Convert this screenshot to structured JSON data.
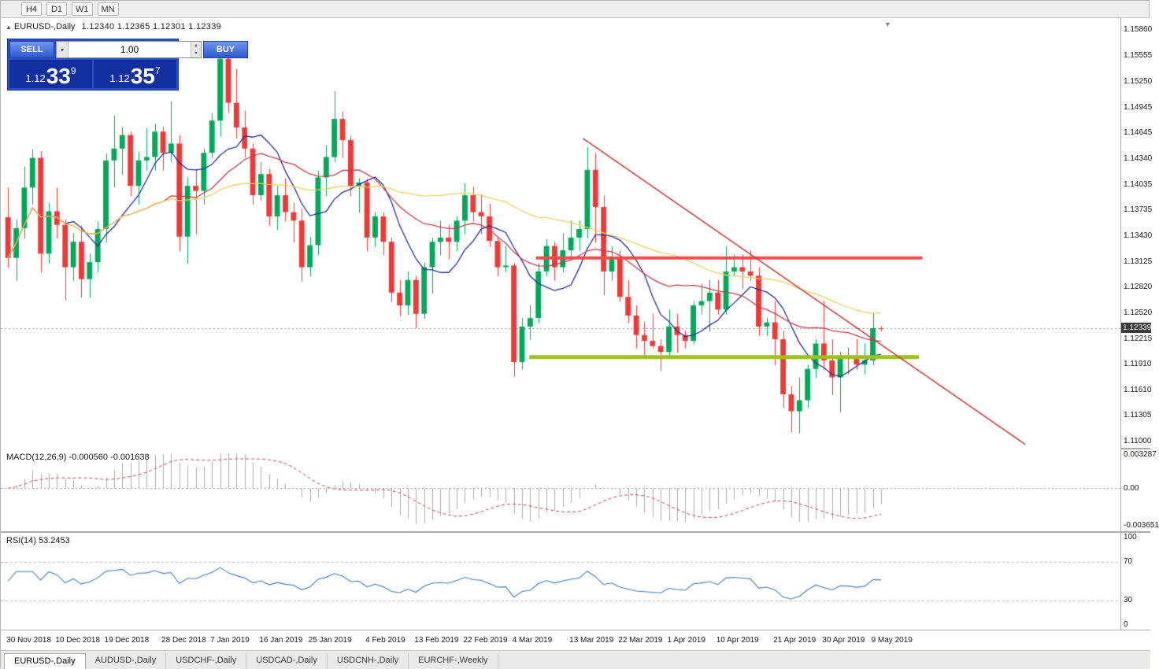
{
  "toolbar": {
    "timeframes": [
      "H4",
      "D1",
      "W1",
      "MN"
    ]
  },
  "chart": {
    "collapse_icon": "▲",
    "title": "EURUSD-,Daily",
    "ohlc_text": "1.12340 1.12365 1.12301 1.12339",
    "shift_icon": "▼"
  },
  "trade_panel": {
    "sell_label": "SELL",
    "buy_label": "BUY",
    "volume": "1.00",
    "spinner_up": "▴",
    "spinner_down": "▾",
    "sell_price": {
      "prefix": "1.12",
      "big": "33",
      "sup": "9"
    },
    "buy_price": {
      "prefix": "1.12",
      "big": "35",
      "sup": "7"
    }
  },
  "price_axis": {
    "ticks": [
      "1.15860",
      "1.15555",
      "1.15250",
      "1.14945",
      "1.14645",
      "1.14340",
      "1.14035",
      "1.13735",
      "1.13430",
      "1.13125",
      "1.12820",
      "1.12520",
      "1.12215",
      "1.11910",
      "1.11610",
      "1.11305",
      "1.11000"
    ],
    "current": "1.12339"
  },
  "macd": {
    "label": "MACD(12,26,9) -0.000560 -0.001638",
    "axis": [
      "0.003287",
      "0.00",
      "-0.003651"
    ]
  },
  "rsi": {
    "label": "RSI(14) 53.2453",
    "axis": [
      "100",
      "70",
      "30",
      "0"
    ],
    "levels": [
      70,
      30
    ]
  },
  "date_axis": [
    "30 Nov 2018",
    "10 Dec 2018",
    "19 Dec 2018",
    "28 Dec 2018",
    "7 Jan 2019",
    "16 Jan 2019",
    "25 Jan 2019",
    "4 Feb 2019",
    "13 Feb 2019",
    "22 Feb 2019",
    "4 Mar 2019",
    "13 Mar 2019",
    "22 Mar 2019",
    "1 Apr 2019",
    "10 Apr 2019",
    "21 Apr 2019",
    "30 Apr 2019",
    "9 May 2019"
  ],
  "tabs": {
    "active": 0,
    "items": [
      "EURUSD-,Daily",
      "AUDUSD-,Daily",
      "USDCHF-,Daily",
      "USDCAD-,Daily",
      "USDCNH-,Daily",
      "EURCHF-,Weekly"
    ]
  },
  "chart_data": {
    "type": "candlestick",
    "symbol": "EURUSD",
    "timeframe": "Daily",
    "price_range": {
      "top": 1.16,
      "bottom": 1.1091
    },
    "current_price": 1.12339,
    "plot_end_fraction": 0.787,
    "colors": {
      "bull": "#00a85c",
      "bear": "#f03838"
    },
    "moving_averages": [
      {
        "period": 8,
        "color": "#1c2f9e"
      },
      {
        "period": 20,
        "color": "#c83a4c"
      },
      {
        "period": 45,
        "color": "#ecd25c"
      }
    ],
    "overlays": {
      "resistance_line": {
        "price": 1.1317,
        "x1_frac": 0.478,
        "x2_frac": 0.823,
        "color": "#f14a4a",
        "width": 4
      },
      "support_line": {
        "price": 1.12,
        "x1_frac": 0.472,
        "x2_frac": 0.82,
        "color": "#9cc21a",
        "width": 5
      },
      "trendline": {
        "x1_frac": 0.52,
        "price1": 1.1458,
        "x2_frac": 0.915,
        "price2": 1.1097,
        "color": "#c43c3c",
        "width": 1.6
      }
    },
    "macd_settings": {
      "fast": 12,
      "slow": 26,
      "signal": 9,
      "bar_color": "#ababab",
      "signal_color": "#d04040"
    },
    "rsi_settings": {
      "period": 14,
      "line_color": "#3f7cbf"
    },
    "candles": [
      [
        1.1365,
        1.14,
        1.1305,
        1.1317
      ],
      [
        1.1317,
        1.1362,
        1.129,
        1.1352
      ],
      [
        1.1352,
        1.1425,
        1.134,
        1.14
      ],
      [
        1.14,
        1.1445,
        1.138,
        1.1435
      ],
      [
        1.1435,
        1.1443,
        1.13,
        1.1322
      ],
      [
        1.1322,
        1.1382,
        1.131,
        1.1372
      ],
      [
        1.1372,
        1.14,
        1.134,
        1.1356
      ],
      [
        1.1356,
        1.1362,
        1.1267,
        1.1306
      ],
      [
        1.1306,
        1.1346,
        1.129,
        1.1336
      ],
      [
        1.1336,
        1.1355,
        1.127,
        1.1292
      ],
      [
        1.1292,
        1.1322,
        1.127,
        1.1312
      ],
      [
        1.1312,
        1.136,
        1.13,
        1.1351
      ],
      [
        1.1351,
        1.144,
        1.1335,
        1.1432
      ],
      [
        1.1432,
        1.1485,
        1.14,
        1.1446
      ],
      [
        1.1446,
        1.1472,
        1.1415,
        1.1462
      ],
      [
        1.1462,
        1.1466,
        1.139,
        1.1402
      ],
      [
        1.1402,
        1.1442,
        1.138,
        1.1432
      ],
      [
        1.1432,
        1.147,
        1.142,
        1.1436
      ],
      [
        1.1436,
        1.1475,
        1.142,
        1.1466
      ],
      [
        1.1466,
        1.1472,
        1.142,
        1.1441
      ],
      [
        1.1441,
        1.1502,
        1.143,
        1.1452
      ],
      [
        1.1452,
        1.1462,
        1.1325,
        1.1342
      ],
      [
        1.1342,
        1.1412,
        1.131,
        1.1402
      ],
      [
        1.1402,
        1.1422,
        1.1345,
        1.1396
      ],
      [
        1.1396,
        1.1446,
        1.138,
        1.1441
      ],
      [
        1.1441,
        1.1488,
        1.1435,
        1.1479
      ],
      [
        1.1479,
        1.156,
        1.146,
        1.1552
      ],
      [
        1.1552,
        1.157,
        1.1488,
        1.15
      ],
      [
        1.15,
        1.154,
        1.1458,
        1.1471
      ],
      [
        1.1471,
        1.1491,
        1.1435,
        1.1446
      ],
      [
        1.1446,
        1.1452,
        1.138,
        1.1391
      ],
      [
        1.1391,
        1.143,
        1.1385,
        1.1416
      ],
      [
        1.1416,
        1.1422,
        1.1355,
        1.1366
      ],
      [
        1.1366,
        1.1402,
        1.135,
        1.1391
      ],
      [
        1.1391,
        1.1411,
        1.136,
        1.1371
      ],
      [
        1.1371,
        1.1382,
        1.1335,
        1.1361
      ],
      [
        1.1361,
        1.1375,
        1.1289,
        1.1306
      ],
      [
        1.1306,
        1.1342,
        1.1295,
        1.1332
      ],
      [
        1.1332,
        1.142,
        1.132,
        1.1412
      ],
      [
        1.1412,
        1.145,
        1.139,
        1.1436
      ],
      [
        1.1436,
        1.1514,
        1.143,
        1.1481
      ],
      [
        1.1481,
        1.149,
        1.1435,
        1.1456
      ],
      [
        1.1456,
        1.1461,
        1.139,
        1.1401
      ],
      [
        1.1401,
        1.1411,
        1.137,
        1.1406
      ],
      [
        1.1406,
        1.141,
        1.1325,
        1.1341
      ],
      [
        1.1341,
        1.1371,
        1.133,
        1.1366
      ],
      [
        1.1366,
        1.1371,
        1.132,
        1.1336
      ],
      [
        1.1336,
        1.1341,
        1.1265,
        1.1276
      ],
      [
        1.1276,
        1.1291,
        1.1248,
        1.1261
      ],
      [
        1.1261,
        1.1301,
        1.125,
        1.1291
      ],
      [
        1.1291,
        1.1296,
        1.1234,
        1.1251
      ],
      [
        1.1251,
        1.1311,
        1.1245,
        1.1306
      ],
      [
        1.1306,
        1.1341,
        1.1275,
        1.1336
      ],
      [
        1.1336,
        1.1361,
        1.132,
        1.1341
      ],
      [
        1.1341,
        1.1356,
        1.1315,
        1.1336
      ],
      [
        1.1336,
        1.1366,
        1.1325,
        1.1361
      ],
      [
        1.1361,
        1.1405,
        1.1345,
        1.1391
      ],
      [
        1.1391,
        1.1401,
        1.136,
        1.1371
      ],
      [
        1.1371,
        1.1392,
        1.1345,
        1.1366
      ],
      [
        1.1366,
        1.1381,
        1.133,
        1.1337
      ],
      [
        1.1337,
        1.1341,
        1.1295,
        1.1306
      ],
      [
        1.1306,
        1.1331,
        1.13,
        1.1308
      ],
      [
        1.1308,
        1.1311,
        1.1177,
        1.1194
      ],
      [
        1.1194,
        1.1246,
        1.1185,
        1.1236
      ],
      [
        1.1236,
        1.1261,
        1.122,
        1.1246
      ],
      [
        1.1246,
        1.1311,
        1.124,
        1.1301
      ],
      [
        1.1301,
        1.1339,
        1.1295,
        1.1331
      ],
      [
        1.1331,
        1.1336,
        1.129,
        1.1306
      ],
      [
        1.1306,
        1.1346,
        1.13,
        1.1326
      ],
      [
        1.1326,
        1.1361,
        1.1315,
        1.1341
      ],
      [
        1.1341,
        1.1361,
        1.1325,
        1.1351
      ],
      [
        1.1351,
        1.1448,
        1.134,
        1.1421
      ],
      [
        1.1421,
        1.1441,
        1.1335,
        1.1377
      ],
      [
        1.1377,
        1.1391,
        1.1273,
        1.1301
      ],
      [
        1.1301,
        1.1331,
        1.129,
        1.1316
      ],
      [
        1.1316,
        1.1326,
        1.1265,
        1.1271
      ],
      [
        1.1271,
        1.1291,
        1.124,
        1.1249
      ],
      [
        1.1249,
        1.1261,
        1.121,
        1.1226
      ],
      [
        1.1226,
        1.1241,
        1.12,
        1.1219
      ],
      [
        1.1219,
        1.1251,
        1.121,
        1.1213
      ],
      [
        1.1213,
        1.1221,
        1.1183,
        1.1206
      ],
      [
        1.1206,
        1.1256,
        1.12,
        1.1236
      ],
      [
        1.1236,
        1.1251,
        1.1205,
        1.1226
      ],
      [
        1.1226,
        1.1231,
        1.121,
        1.1219
      ],
      [
        1.1219,
        1.1266,
        1.1215,
        1.1261
      ],
      [
        1.1261,
        1.1286,
        1.125,
        1.1266
      ],
      [
        1.1266,
        1.1291,
        1.123,
        1.1276
      ],
      [
        1.1276,
        1.1291,
        1.125,
        1.1256
      ],
      [
        1.1256,
        1.1331,
        1.125,
        1.1301
      ],
      [
        1.1301,
        1.1321,
        1.1295,
        1.1306
      ],
      [
        1.1306,
        1.1321,
        1.128,
        1.1301
      ],
      [
        1.1301,
        1.1326,
        1.129,
        1.1296
      ],
      [
        1.1296,
        1.1306,
        1.1225,
        1.1236
      ],
      [
        1.1236,
        1.1246,
        1.1225,
        1.1241
      ],
      [
        1.1241,
        1.1266,
        1.119,
        1.1221
      ],
      [
        1.1221,
        1.1231,
        1.114,
        1.1156
      ],
      [
        1.1156,
        1.1166,
        1.1111,
        1.1136
      ],
      [
        1.1136,
        1.1176,
        1.111,
        1.1149
      ],
      [
        1.1149,
        1.1191,
        1.114,
        1.1186
      ],
      [
        1.1186,
        1.1221,
        1.1175,
        1.1216
      ],
      [
        1.1216,
        1.1266,
        1.1185,
        1.1196
      ],
      [
        1.1196,
        1.1221,
        1.1155,
        1.1176
      ],
      [
        1.1176,
        1.1206,
        1.1135,
        1.1201
      ],
      [
        1.1201,
        1.1211,
        1.118,
        1.1199
      ],
      [
        1.1199,
        1.1221,
        1.1185,
        1.1191
      ],
      [
        1.1191,
        1.1216,
        1.118,
        1.1196
      ],
      [
        1.1196,
        1.1252,
        1.119,
        1.1234
      ],
      [
        1.1234,
        1.12365,
        1.12301,
        1.12339
      ]
    ]
  }
}
